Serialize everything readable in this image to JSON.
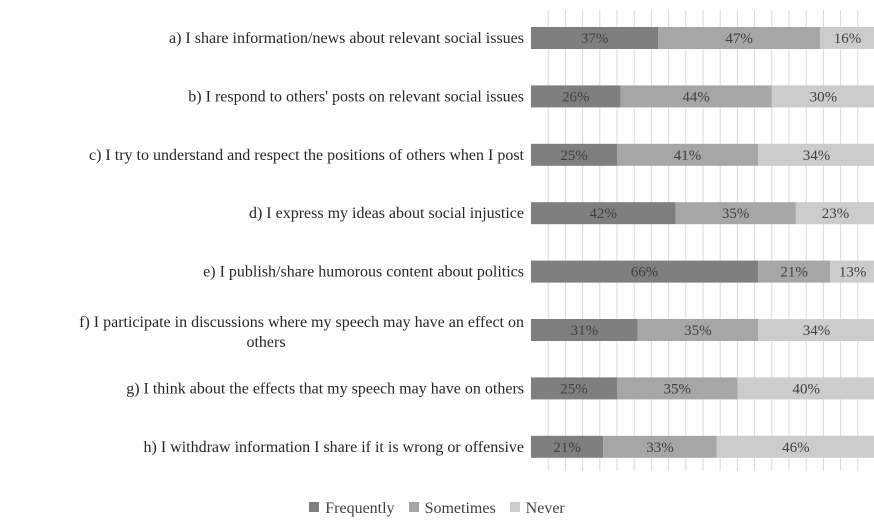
{
  "chart_data": {
    "type": "bar",
    "orientation": "horizontal",
    "stacked": true,
    "percent_stacked": true,
    "xlim": [
      0,
      100
    ],
    "grid": true,
    "legend_position": "bottom",
    "categories": [
      "a) I share information/news about relevant social issues",
      "b) I respond to others' posts on relevant social issues",
      "c) I try to understand and respect the positions of others when I post",
      "d) I express my ideas about social injustice",
      "e) I publish/share humorous content about politics",
      "f) I participate in discussions where my speech may have an effect on others",
      "g) I think about the effects that my speech may have on others",
      "h) I withdraw information I share if it is wrong or offensive"
    ],
    "category_lines": [
      [
        "a) I share information/news about relevant social issues"
      ],
      [
        "b) I respond to others' posts on relevant social issues"
      ],
      [
        "c) I try to understand and respect the positions of others when I post"
      ],
      [
        "d) I express my ideas about social injustice"
      ],
      [
        "e) I publish/share humorous content about politics"
      ],
      [
        "f) I participate in discussions where my speech may have an effect on",
        "others"
      ],
      [
        "g) I think about the effects that my speech may have on others"
      ],
      [
        "h) I withdraw information I share if it is wrong or offensive"
      ]
    ],
    "series": [
      {
        "name": "Frequently",
        "color": "#7f7f7f",
        "values": [
          37,
          26,
          25,
          42,
          66,
          31,
          25,
          21
        ]
      },
      {
        "name": "Sometimes",
        "color": "#a6a6a6",
        "values": [
          47,
          44,
          41,
          35,
          21,
          35,
          35,
          33
        ]
      },
      {
        "name": "Never",
        "color": "#cccccc",
        "values": [
          16,
          30,
          34,
          23,
          13,
          34,
          40,
          46
        ]
      }
    ],
    "value_labels": [
      [
        "37%",
        "26%",
        "25%",
        "42%",
        "66%",
        "31%",
        "25%",
        "21%"
      ],
      [
        "47%",
        "44%",
        "41%",
        "35%",
        "21%",
        "35%",
        "35%",
        "33%"
      ],
      [
        "16%",
        "30%",
        "34%",
        "23%",
        "13%",
        "34%",
        "40%",
        "46%"
      ]
    ]
  }
}
